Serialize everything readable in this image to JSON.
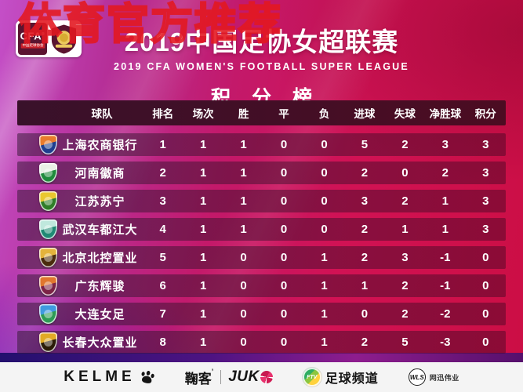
{
  "watermark": "体育官方推荐",
  "header": {
    "logo": {
      "cfa": "CFA",
      "reg": "®",
      "cfa_sub": "中国足球协会"
    },
    "title": "2019中国足协女超联赛",
    "subtitle": "2019 CFA WOMEN'S FOOTBALL SUPER LEAGUE",
    "section_title": "积 分 榜"
  },
  "colors": {
    "background_left": "#c44fc8",
    "background_right": "#cb0e44",
    "header_bar": "#3f0f24",
    "watermark_red": "#e2181f",
    "footer_bg": "#f4f4f4"
  },
  "chart_data": {
    "type": "table",
    "title": "积分榜 — 2019中国足协女超联赛",
    "columns": [
      "球队",
      "排名",
      "场次",
      "胜",
      "平",
      "负",
      "进球",
      "失球",
      "净胜球",
      "积分"
    ],
    "rows": [
      [
        "上海农商银行",
        1,
        1,
        1,
        0,
        0,
        5,
        2,
        3,
        3
      ],
      [
        "河南徽商",
        2,
        1,
        1,
        0,
        0,
        2,
        0,
        2,
        3
      ],
      [
        "江苏苏宁",
        3,
        1,
        1,
        0,
        0,
        3,
        2,
        1,
        3
      ],
      [
        "武汉车都江大",
        4,
        1,
        1,
        0,
        0,
        2,
        1,
        1,
        3
      ],
      [
        "北京北控置业",
        5,
        1,
        0,
        0,
        1,
        2,
        3,
        -1,
        0
      ],
      [
        "广东辉骏",
        6,
        1,
        0,
        0,
        1,
        1,
        2,
        -1,
        0
      ],
      [
        "大连女足",
        7,
        1,
        0,
        0,
        1,
        0,
        2,
        -2,
        0
      ],
      [
        "长春大众置业",
        8,
        1,
        0,
        0,
        1,
        2,
        5,
        -3,
        0
      ]
    ],
    "crest_colors": [
      {
        "c1": "#e87b2c",
        "c2": "#1e3e8f"
      },
      {
        "c1": "#e9f0e6",
        "c2": "#1f8a3c"
      },
      {
        "c1": "#e9c72f",
        "c2": "#2f7d28"
      },
      {
        "c1": "#bfe8dd",
        "c2": "#1f8a74"
      },
      {
        "c1": "#e3b33c",
        "c2": "#4a2c0d"
      },
      {
        "c1": "#e0762e",
        "c2": "#7c2346"
      },
      {
        "c1": "#3f9ae0",
        "c2": "#2d9c55"
      },
      {
        "c1": "#e2aa25",
        "c2": "#2b1c08"
      }
    ]
  },
  "sponsors": {
    "kelme": {
      "label": "KELME"
    },
    "juke": {
      "cn": "鞠客",
      "apos": "’",
      "en": "JUK"
    },
    "ftv": {
      "icon_text": "FTV",
      "label": "足球频道"
    },
    "wls": {
      "icon_text": "WLS",
      "label": "网迅伟业"
    }
  }
}
